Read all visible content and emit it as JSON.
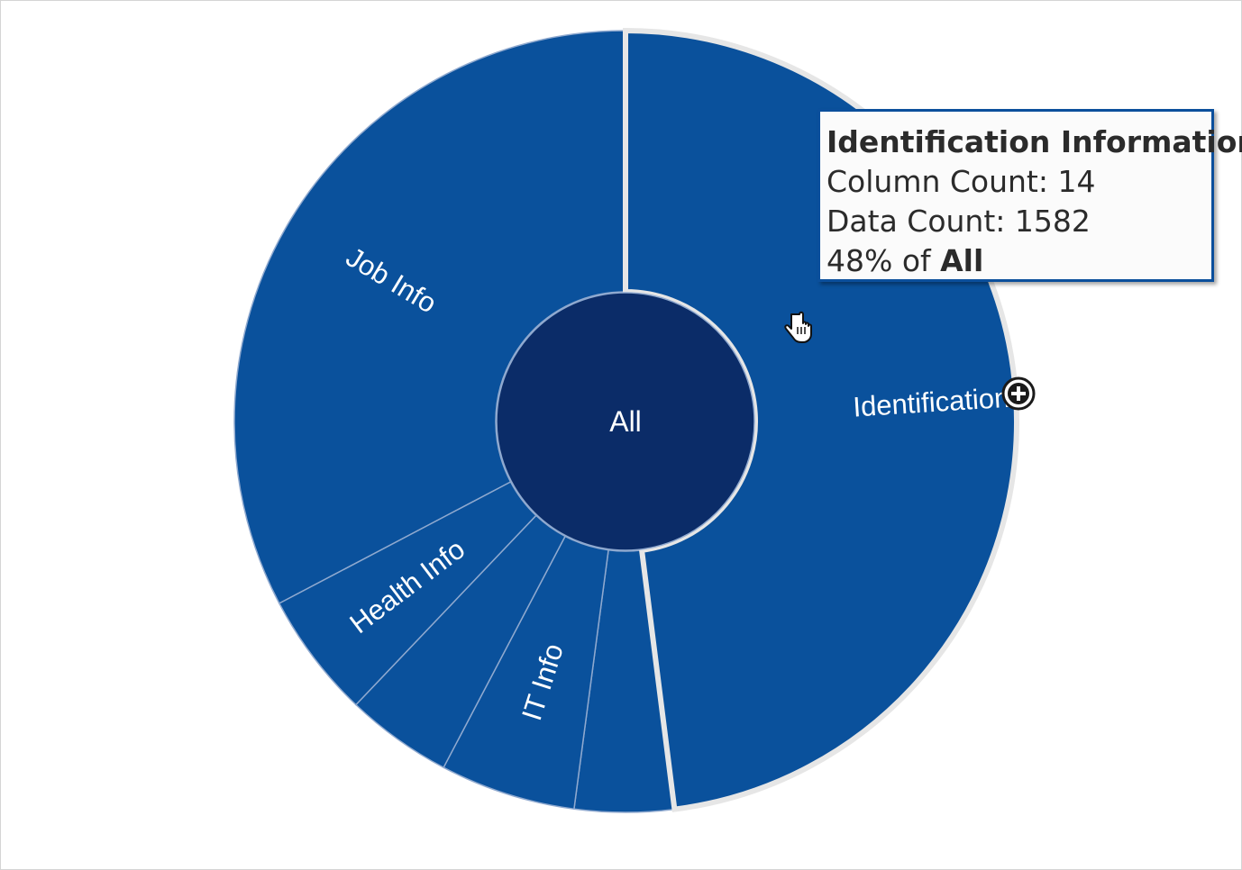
{
  "chart_data": {
    "type": "sunburst",
    "center": {
      "label": "All"
    },
    "segments": [
      {
        "label": "Identification I...",
        "share": 0.48,
        "color": "#0a519c",
        "selected": true
      },
      {
        "label": "",
        "share": 0.041,
        "color": "#0a519c"
      },
      {
        "label": "IT Info",
        "share": 0.056,
        "color": "#0a519c"
      },
      {
        "label": "",
        "share": 0.044,
        "color": "#0a519c"
      },
      {
        "label": "Health Info",
        "share": 0.052,
        "color": "#0a519c"
      },
      {
        "label": "Job Info",
        "share": 0.327,
        "color": "#0a519c"
      }
    ],
    "colors": {
      "ring": "#0a519c",
      "center": "#0b2c68",
      "separator": "#8fa9cf",
      "selected_outline": "#e6e6e6"
    }
  },
  "tooltip": {
    "title": "Identification Information",
    "column_count": "Column Count: 14",
    "data_count": "Data Count: 1582",
    "percent": "48% of ",
    "percent_of": "All"
  },
  "icons": {
    "zoom": "zoom-in-plus-icon",
    "cursor": "pointer-hand-icon"
  }
}
